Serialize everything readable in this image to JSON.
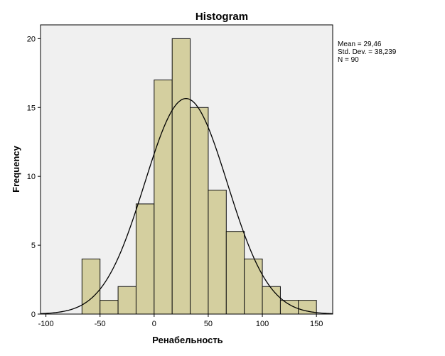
{
  "chart_data": {
    "type": "bar",
    "title": "Histogram",
    "xlabel": "Ренабельность",
    "ylabel": "Frequency",
    "xlim": [
      -105,
      165
    ],
    "ylim": [
      0,
      21
    ],
    "grid": false,
    "bin_width": 16.67,
    "bins": [
      {
        "start": -66.67,
        "end": -50.0,
        "count": 4
      },
      {
        "start": -50.0,
        "end": -33.33,
        "count": 1
      },
      {
        "start": -33.33,
        "end": -16.67,
        "count": 2
      },
      {
        "start": -16.67,
        "end": 0.0,
        "count": 8
      },
      {
        "start": 0.0,
        "end": 16.67,
        "count": 17
      },
      {
        "start": 16.67,
        "end": 33.33,
        "count": 20
      },
      {
        "start": 33.33,
        "end": 50.0,
        "count": 15
      },
      {
        "start": 50.0,
        "end": 66.67,
        "count": 9
      },
      {
        "start": 66.67,
        "end": 83.33,
        "count": 6
      },
      {
        "start": 83.33,
        "end": 100.0,
        "count": 4
      },
      {
        "start": 100.0,
        "end": 116.67,
        "count": 2
      },
      {
        "start": 116.67,
        "end": 133.33,
        "count": 1
      },
      {
        "start": 133.33,
        "end": 150.0,
        "count": 1
      }
    ],
    "x_ticks": [
      "-100",
      "-50",
      "0",
      "50",
      "100",
      "150"
    ],
    "y_ticks": [
      "0",
      "5",
      "10",
      "15",
      "20"
    ],
    "normal_curve": {
      "mean": 29.46,
      "sd": 38.239,
      "n": 90
    },
    "stats": {
      "mean": "Mean = 29,46",
      "std_dev": "Std. Dev. = 38,239",
      "n": "N = 90"
    },
    "colors": {
      "bar_fill": "#d4cf9f",
      "bar_stroke": "#111111",
      "plot_background": "#f0f0f0",
      "curve": "#000000"
    }
  }
}
